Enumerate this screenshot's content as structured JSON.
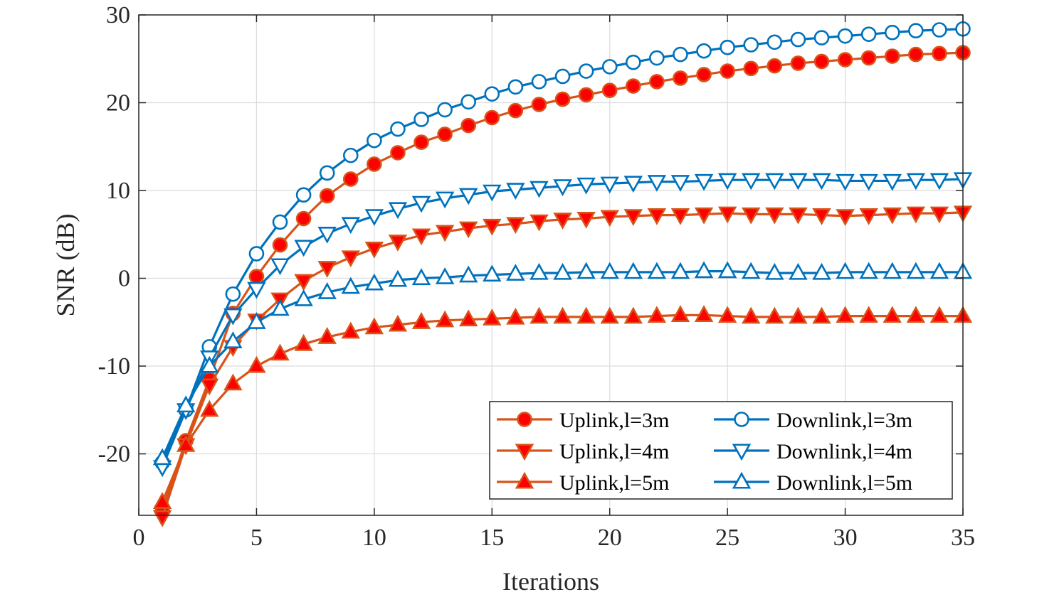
{
  "chart_data": {
    "type": "line",
    "title": "",
    "xlabel": "Iterations",
    "ylabel": "SNR (dB)",
    "xlim": [
      0,
      35
    ],
    "ylim": [
      -27,
      30
    ],
    "xticks": [
      0,
      5,
      10,
      15,
      20,
      25,
      30,
      35
    ],
    "yticks": [
      -20,
      -10,
      0,
      10,
      20,
      30
    ],
    "xtick_labels": [
      "0",
      "5",
      "10",
      "15",
      "20",
      "25",
      "30",
      "35"
    ],
    "ytick_labels": [
      "-20",
      "-10",
      "0",
      "10",
      "20",
      "30"
    ],
    "grid": true,
    "legend_position": "bottom-right",
    "x": [
      1,
      2,
      3,
      4,
      5,
      6,
      7,
      8,
      9,
      10,
      11,
      12,
      13,
      14,
      15,
      16,
      17,
      18,
      19,
      20,
      21,
      22,
      23,
      24,
      25,
      26,
      27,
      28,
      29,
      30,
      31,
      32,
      33,
      34,
      35
    ],
    "series": [
      {
        "name": "Uplink,l=3m",
        "color": "#D95319",
        "marker": "circle-filled",
        "values": [
          -26.5,
          -18.5,
          -11.5,
          -4.0,
          0.2,
          3.8,
          6.8,
          9.4,
          11.3,
          13.0,
          14.3,
          15.5,
          16.4,
          17.4,
          18.3,
          19.1,
          19.8,
          20.4,
          20.9,
          21.4,
          21.9,
          22.4,
          22.8,
          23.2,
          23.6,
          23.9,
          24.2,
          24.5,
          24.7,
          24.9,
          25.1,
          25.3,
          25.5,
          25.6,
          25.7
        ]
      },
      {
        "name": "Uplink,l=4m",
        "color": "#D95319",
        "marker": "triangle-down-filled",
        "values": [
          -27.2,
          -19.0,
          -12.2,
          -7.8,
          -4.8,
          -2.4,
          -0.3,
          1.2,
          2.4,
          3.4,
          4.2,
          4.9,
          5.3,
          5.7,
          6.0,
          6.2,
          6.5,
          6.7,
          6.8,
          7.0,
          7.1,
          7.2,
          7.2,
          7.3,
          7.4,
          7.3,
          7.3,
          7.3,
          7.2,
          7.1,
          7.2,
          7.3,
          7.4,
          7.4,
          7.5
        ]
      },
      {
        "name": "Uplink,l=5m",
        "color": "#D95319",
        "marker": "triangle-up-filled",
        "values": [
          -25.5,
          -19.0,
          -15.0,
          -12.0,
          -10.0,
          -8.6,
          -7.5,
          -6.7,
          -6.1,
          -5.6,
          -5.3,
          -5.0,
          -4.8,
          -4.7,
          -4.6,
          -4.5,
          -4.4,
          -4.4,
          -4.4,
          -4.4,
          -4.4,
          -4.3,
          -4.2,
          -4.2,
          -4.3,
          -4.4,
          -4.4,
          -4.4,
          -4.4,
          -4.3,
          -4.3,
          -4.3,
          -4.3,
          -4.3,
          -4.3
        ]
      },
      {
        "name": "Downlink,l=3m",
        "color": "#0072BD",
        "marker": "circle-open",
        "values": [
          -21.0,
          -15.0,
          -7.8,
          -1.8,
          2.8,
          6.4,
          9.5,
          12.0,
          14.0,
          15.7,
          17.0,
          18.1,
          19.2,
          20.1,
          21.0,
          21.8,
          22.4,
          23.0,
          23.6,
          24.1,
          24.6,
          25.1,
          25.5,
          25.9,
          26.3,
          26.6,
          26.9,
          27.2,
          27.4,
          27.6,
          27.8,
          28.0,
          28.2,
          28.3,
          28.4
        ]
      },
      {
        "name": "Downlink,l=4m",
        "color": "#0072BD",
        "marker": "triangle-down-open",
        "values": [
          -21.5,
          -15.0,
          -9.0,
          -4.2,
          -1.2,
          1.5,
          3.6,
          5.1,
          6.2,
          7.1,
          7.9,
          8.6,
          9.1,
          9.5,
          9.9,
          10.1,
          10.3,
          10.5,
          10.7,
          10.8,
          10.9,
          11.0,
          11.0,
          11.1,
          11.2,
          11.2,
          11.2,
          11.2,
          11.2,
          11.1,
          11.1,
          11.1,
          11.2,
          11.2,
          11.3
        ]
      },
      {
        "name": "Downlink,l=5m",
        "color": "#0072BD",
        "marker": "triangle-up-open",
        "values": [
          -20.5,
          -14.5,
          -10.0,
          -7.2,
          -5.0,
          -3.5,
          -2.4,
          -1.6,
          -1.0,
          -0.6,
          -0.2,
          0.0,
          0.1,
          0.3,
          0.4,
          0.5,
          0.6,
          0.6,
          0.7,
          0.7,
          0.7,
          0.7,
          0.7,
          0.8,
          0.8,
          0.7,
          0.6,
          0.6,
          0.6,
          0.7,
          0.7,
          0.7,
          0.7,
          0.7,
          0.7
        ]
      }
    ]
  }
}
